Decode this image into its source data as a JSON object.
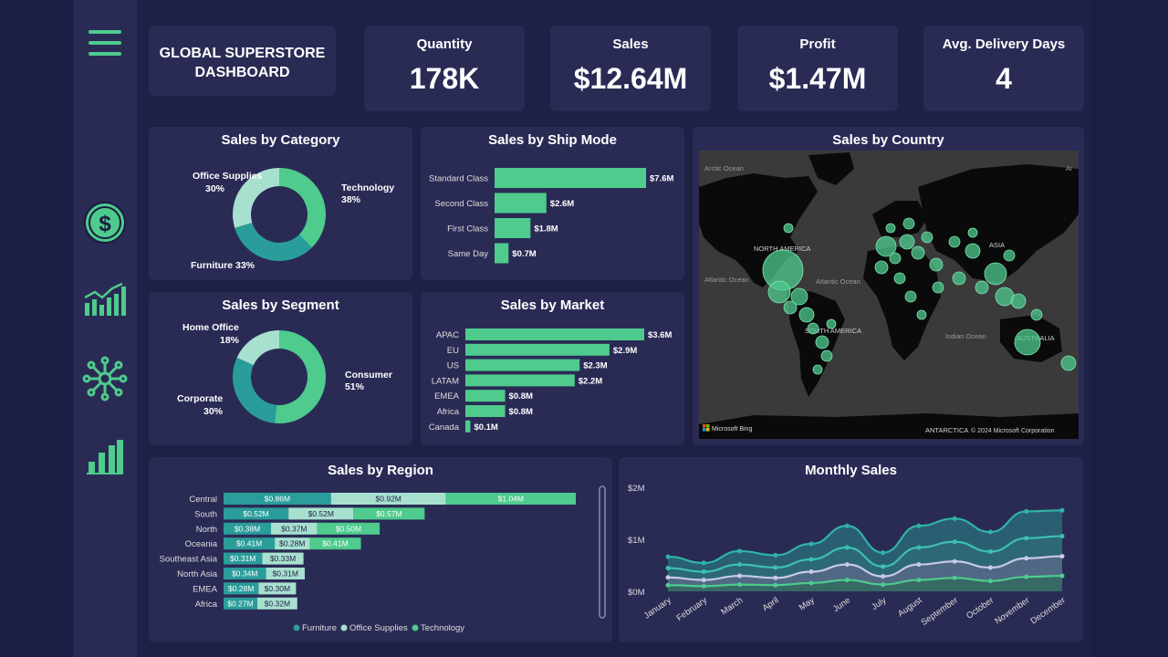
{
  "dashboard": {
    "title_line1": "GLOBAL SUPERSTORE",
    "title_line2": "DASHBOARD"
  },
  "sidebar": {
    "items": [
      "menu-icon",
      "dollar-icon",
      "trend-chart-icon",
      "network-icon",
      "bar-chart-icon"
    ]
  },
  "kpis": [
    {
      "label": "Quantity",
      "value": "178K"
    },
    {
      "label": "Sales",
      "value": "$12.64M"
    },
    {
      "label": "Profit",
      "value": "$1.47M"
    },
    {
      "label": "Avg. Delivery Days",
      "value": "4"
    }
  ],
  "colors": {
    "technology": "#4ecb8d",
    "furniture": "#2a9d9a",
    "office_supplies": "#a8e0cf",
    "accent": "#4ecb8d"
  },
  "category_chart": {
    "title": "Sales by Category",
    "labels": [
      {
        "name": "Office Supplies",
        "pct": "30%"
      },
      {
        "name": "Technology",
        "pct": "38%"
      },
      {
        "name": "Furniture 33%"
      }
    ]
  },
  "segment_chart": {
    "title": "Sales by Segment",
    "labels": [
      {
        "name": "Home Office",
        "pct": "18%"
      },
      {
        "name": "Consumer",
        "pct": "51%"
      },
      {
        "name": "Corporate",
        "pct": "30%"
      }
    ]
  },
  "shipmode_chart": {
    "title": "Sales by Ship Mode"
  },
  "market_chart": {
    "title": "Sales by Market"
  },
  "country_map": {
    "title": "Sales by Country",
    "labels": {
      "arctic": "Arctic Ocean",
      "arctic_right": "Ar",
      "north_america": "NORTH AMERICA",
      "atlantic": "Atlantic Ocean",
      "atlantic2": "Atlantic Ocean",
      "south_america": "SOUTH AMERICA",
      "asia": "ASIA",
      "indian": "Indian Ocean",
      "australia": "AUSTRALIA",
      "antarctica": "ANTARCTICA",
      "copyright": "© 2024 Microsoft Corporation",
      "bing": "Microsoft Bing"
    }
  },
  "region_chart": {
    "title": "Sales by Region",
    "legend": [
      "Furniture",
      "Office Supplies",
      "Technology"
    ]
  },
  "monthly_chart": {
    "title": "Monthly Sales",
    "y_ticks": [
      "$2M",
      "$1M",
      "$0M"
    ]
  },
  "chart_data": [
    {
      "type": "pie",
      "title": "Sales by Category",
      "categories": [
        "Technology",
        "Furniture",
        "Office Supplies"
      ],
      "values": [
        38,
        33,
        30
      ]
    },
    {
      "type": "bar",
      "title": "Sales by Ship Mode",
      "categories": [
        "Standard Class",
        "Second Class",
        "First Class",
        "Same Day"
      ],
      "values": [
        7.6,
        2.6,
        1.8,
        0.7
      ],
      "labels": [
        "$7.6M",
        "$2.6M",
        "$1.8M",
        "$0.7M"
      ]
    },
    {
      "type": "pie",
      "title": "Sales by Segment",
      "categories": [
        "Consumer",
        "Corporate",
        "Home Office"
      ],
      "values": [
        51,
        30,
        18
      ]
    },
    {
      "type": "bar",
      "title": "Sales by Market",
      "categories": [
        "APAC",
        "EU",
        "US",
        "LATAM",
        "EMEA",
        "Africa",
        "Canada"
      ],
      "values": [
        3.6,
        2.9,
        2.3,
        2.2,
        0.8,
        0.8,
        0.1
      ],
      "labels": [
        "$3.6M",
        "$2.9M",
        "$2.3M",
        "$2.2M",
        "$0.8M",
        "$0.8M",
        "$0.1M"
      ]
    },
    {
      "type": "bar",
      "title": "Sales by Region",
      "categories": [
        "Central",
        "South",
        "North",
        "Oceania",
        "Southeast Asia",
        "North Asia",
        "EMEA",
        "Africa"
      ],
      "series": [
        {
          "name": "Furniture",
          "values": [
            0.86,
            0.52,
            0.38,
            0.41,
            0.31,
            0.34,
            0.28,
            0.27
          ],
          "labels": [
            "$0.86M",
            "$0.52M",
            "$0.38M",
            "$0.41M",
            "$0.31M",
            "$0.34M",
            "$0.28M",
            "$0.27M"
          ]
        },
        {
          "name": "Office Supplies",
          "values": [
            0.92,
            0.52,
            0.37,
            0.28,
            0.33,
            0.31,
            0.3,
            0.32
          ],
          "labels": [
            "$0.92M",
            "$0.52M",
            "$0.37M",
            "$0.28M",
            "$0.33M",
            "$0.31M",
            "$0.30M",
            "$0.32M"
          ]
        },
        {
          "name": "Technology",
          "values": [
            1.04,
            0.57,
            0.5,
            0.41,
            0,
            0,
            0,
            0
          ],
          "labels": [
            "$1.04M",
            "$0.57M",
            "$0.50M",
            "$0.41M",
            "",
            "",
            "",
            ""
          ]
        }
      ]
    },
    {
      "type": "area",
      "title": "Monthly Sales",
      "categories": [
        "January",
        "February",
        "March",
        "April",
        "May",
        "June",
        "July",
        "August",
        "September",
        "October",
        "November",
        "December"
      ],
      "ylim": [
        0,
        2
      ],
      "series": [
        {
          "values": [
            0.67,
            0.55,
            0.78,
            0.7,
            0.92,
            1.27,
            0.75,
            1.27,
            1.41,
            1.15,
            1.55,
            1.57
          ]
        },
        {
          "values": [
            0.45,
            0.38,
            0.52,
            0.46,
            0.62,
            0.85,
            0.48,
            0.85,
            0.96,
            0.77,
            1.03,
            1.07
          ]
        },
        {
          "values": [
            0.27,
            0.22,
            0.3,
            0.26,
            0.38,
            0.52,
            0.29,
            0.52,
            0.58,
            0.46,
            0.64,
            0.68
          ]
        },
        {
          "values": [
            0.12,
            0.1,
            0.13,
            0.12,
            0.16,
            0.22,
            0.13,
            0.22,
            0.26,
            0.2,
            0.28,
            0.3
          ]
        }
      ]
    }
  ]
}
